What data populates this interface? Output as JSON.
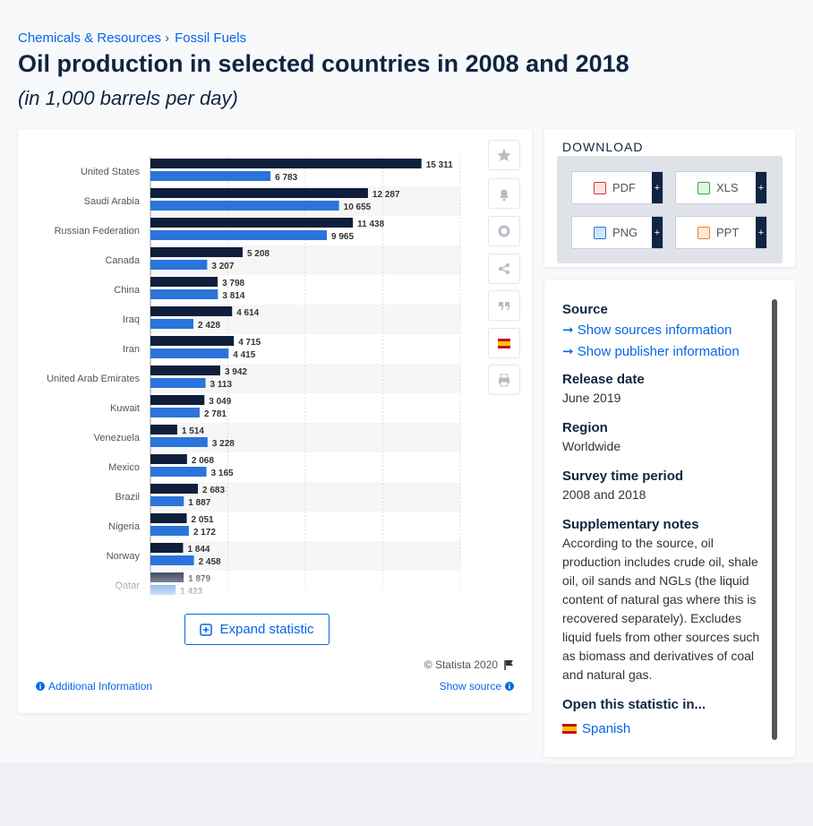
{
  "breadcrumb": [
    "Chemicals & Resources",
    "Fossil Fuels"
  ],
  "title": "Oil production in selected countries in 2008 and 2018",
  "subtitle": "(in 1,000 barrels per day)",
  "chart_data": {
    "type": "bar",
    "orientation": "horizontal",
    "categories": [
      "United States",
      "Saudi Arabia",
      "Russian Federation",
      "Canada",
      "China",
      "Iraq",
      "Iran",
      "United Arab Emirates",
      "Kuwait",
      "Venezuela",
      "Mexico",
      "Brazil",
      "Nigeria",
      "Norway",
      "Qatar"
    ],
    "series": [
      {
        "color": "#0f1f3b",
        "values": [
          15311,
          12287,
          11438,
          5208,
          3798,
          4614,
          4715,
          3942,
          3049,
          1514,
          2068,
          2683,
          2051,
          1844,
          1879
        ],
        "value_labels": [
          "15 311",
          "12 287",
          "11 438",
          "5 208",
          "3 798",
          "4 614",
          "4 715",
          "3 942",
          "3 049",
          "1 514",
          "2 068",
          "2 683",
          "2 051",
          "1 844",
          "1 879"
        ]
      },
      {
        "color": "#2a74db",
        "values": [
          6783,
          10655,
          9965,
          3207,
          3814,
          2428,
          4415,
          3113,
          2781,
          3228,
          3165,
          1887,
          2172,
          2458,
          1423
        ],
        "value_labels": [
          "6 783",
          "10 655",
          "9 965",
          "3 207",
          "3 814",
          "2 428",
          "4 415",
          "3 113",
          "2 781",
          "3 228",
          "3 165",
          "1 887",
          "2 172",
          "2 458",
          "1 423"
        ]
      }
    ],
    "xlim": [
      0,
      17500
    ]
  },
  "expand_button": "Expand statistic",
  "copyright": "© Statista 2020",
  "additional_information": "Additional Information",
  "show_source": "Show source",
  "download": {
    "heading": "DOWNLOAD",
    "formats": [
      "PDF",
      "XLS",
      "PNG",
      "PPT"
    ]
  },
  "details": {
    "source_heading": "Source",
    "source_links": [
      "Show sources information",
      "Show publisher information"
    ],
    "sections": [
      {
        "heading": "Release date",
        "text": "June 2019"
      },
      {
        "heading": "Region",
        "text": "Worldwide"
      },
      {
        "heading": "Survey time period",
        "text": "2008 and 2018"
      },
      {
        "heading": "Supplementary notes",
        "text": "According to the source, oil production includes crude oil, shale oil, oil sands and NGLs (the liquid content of natural gas where this is recovered separately). Excludes liquid fuels from other sources such as biomass and derivatives of coal and natural gas."
      }
    ],
    "open_heading": "Open this statistic in...",
    "languages": [
      "Spanish"
    ]
  }
}
